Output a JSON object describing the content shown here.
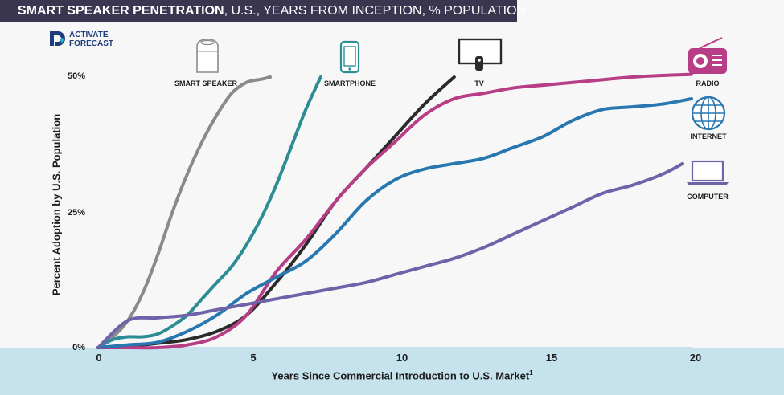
{
  "header": {
    "title_bold": "SMART SPEAKER PENETRATION",
    "title_rest": ", U.S., YEARS FROM INCEPTION, % POPULATION"
  },
  "logo": {
    "line1": "ACTIVATE",
    "line2": "FORECAST"
  },
  "colors": {
    "title_bg": "#3a3650",
    "bottom_band": "#c6e2ec",
    "smart_speaker": "#8a8a8a",
    "smartphone": "#2e8c95",
    "tv": "#2a2a2a",
    "radio": "#b73e86",
    "internet": "#2877b0",
    "computer": "#6f62a8"
  },
  "chart_data": {
    "type": "line",
    "title": "SMART SPEAKER PENETRATION, U.S., YEARS FROM INCEPTION, % POPULATION",
    "xlabel": "Years Since Commercial Introduction to U.S. Market",
    "xlabel_footnote": "1",
    "ylabel": "Percent Adoption by U.S. Population",
    "xlim": [
      0,
      20
    ],
    "ylim": [
      0,
      50
    ],
    "xticks": [
      "0",
      "5",
      "10",
      "15",
      "20"
    ],
    "yticks": [
      "0%",
      "25%",
      "50%"
    ],
    "grid": false,
    "series": [
      {
        "name": "SMART SPEAKER",
        "key": "smart_speaker",
        "x": [
          0,
          0.5,
          1,
          1.5,
          2,
          2.5,
          3,
          3.5,
          4,
          4.5,
          5,
          5.5,
          5.8
        ],
        "y": [
          0,
          2,
          5,
          10,
          17,
          25,
          32,
          38,
          43,
          47,
          49,
          49.6,
          50
        ]
      },
      {
        "name": "SMARTPHONE",
        "key": "smartphone",
        "x": [
          0,
          0.5,
          1,
          1.5,
          2,
          2.5,
          3,
          3.5,
          4,
          4.5,
          5,
          5.5,
          6,
          6.5,
          7,
          7.5
        ],
        "y": [
          0,
          1.5,
          2,
          2,
          2.5,
          4,
          6,
          9,
          12,
          15,
          19,
          24,
          30,
          37,
          44,
          50
        ]
      },
      {
        "name": "TV",
        "key": "tv",
        "x": [
          0,
          1,
          2,
          3,
          4,
          5,
          6,
          7,
          8,
          9,
          10,
          11,
          12
        ],
        "y": [
          0,
          0.3,
          0.8,
          1.5,
          3,
          6,
          12,
          19,
          27,
          33,
          39,
          45,
          50
        ]
      },
      {
        "name": "RADIO",
        "key": "radio",
        "x": [
          0,
          1,
          2,
          3,
          4,
          5,
          6,
          7,
          8,
          9,
          10,
          11,
          12,
          13,
          14,
          15,
          16,
          17,
          18,
          19,
          20
        ],
        "y": [
          0,
          0,
          0,
          0.5,
          2,
          6,
          14,
          20,
          27,
          33,
          38,
          43,
          46,
          47,
          48,
          48.5,
          49,
          49.5,
          50,
          50.3,
          50.5
        ]
      },
      {
        "name": "INTERNET",
        "key": "internet",
        "x": [
          0,
          1,
          2,
          3,
          4,
          5,
          6,
          7,
          8,
          9,
          10,
          11,
          12,
          13,
          14,
          15,
          16,
          17,
          18,
          19,
          20
        ],
        "y": [
          0,
          0.5,
          1,
          3,
          6,
          10,
          13,
          16,
          21,
          27,
          31,
          33,
          34,
          35,
          37,
          39,
          42,
          44,
          44.5,
          45,
          46
        ]
      },
      {
        "name": "COMPUTER",
        "key": "computer",
        "x": [
          0,
          1,
          2,
          3,
          4,
          5,
          6,
          7,
          8,
          9,
          10,
          11,
          12,
          13,
          14,
          15,
          16,
          17,
          18,
          19,
          19.7
        ],
        "y": [
          0,
          5,
          5.5,
          6,
          7,
          8,
          9,
          10,
          11,
          12,
          13.5,
          15,
          16.5,
          18.5,
          21,
          23.5,
          26,
          28.5,
          30,
          32,
          34
        ]
      }
    ]
  },
  "labels": {
    "smart_speaker": "SMART SPEAKER",
    "smartphone": "SMARTPHONE",
    "tv": "TV",
    "radio": "RADIO",
    "internet": "INTERNET",
    "computer": "COMPUTER"
  },
  "icons": {
    "smart_speaker": "smart-speaker-icon",
    "smartphone": "smartphone-icon",
    "tv": "tv-icon",
    "radio": "radio-icon",
    "internet": "globe-icon",
    "computer": "laptop-icon"
  }
}
